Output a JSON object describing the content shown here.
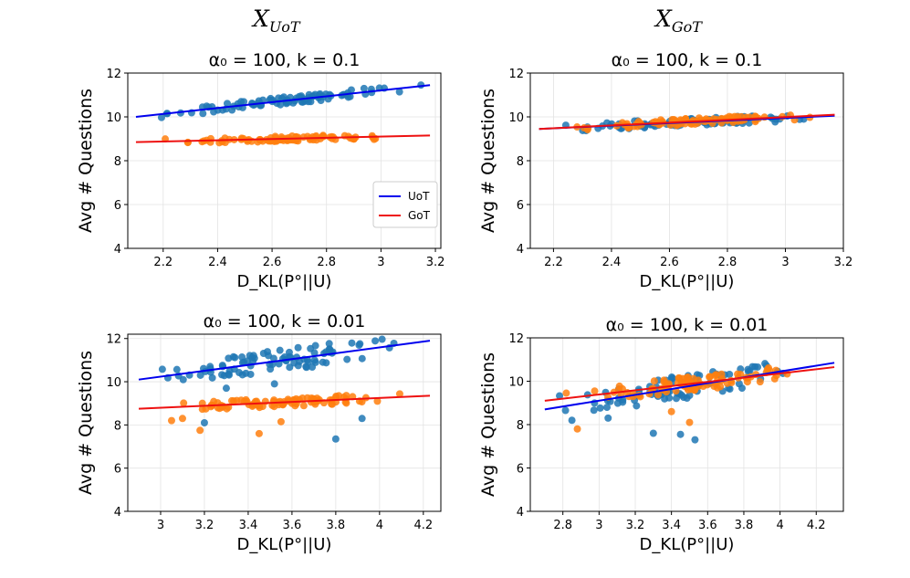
{
  "column_titles": [
    {
      "base": "X",
      "sub": "UoT"
    },
    {
      "base": "X",
      "sub": "GoT"
    }
  ],
  "colors": {
    "uot": "#1f77b4",
    "got": "#ff7f0e",
    "uot_line": "#0000ee",
    "got_line": "#ee1111"
  },
  "chart_data": [
    {
      "type": "scatter",
      "title": "α₀ = 100, k = 0.1",
      "xlabel": "D_KL(P°||U)",
      "ylabel": "Avg # Questions",
      "xlim": [
        2.07,
        3.22
      ],
      "ylim": [
        4,
        12
      ],
      "xticks": [
        2.2,
        2.4,
        2.6,
        2.8,
        3.0,
        3.2
      ],
      "yticks": [
        4,
        6,
        8,
        10,
        12
      ],
      "legend": {
        "position": "right",
        "entries": [
          "UoT",
          "GoT"
        ]
      },
      "series": [
        {
          "name": "UoT",
          "x_range": [
            2.1,
            3.18
          ],
          "y_center": [
            10.0,
            11.45
          ],
          "y_spread": 0.18,
          "count": 90,
          "fit": {
            "x": [
              2.1,
              3.18
            ],
            "y": [
              10.0,
              11.45
            ]
          }
        },
        {
          "name": "GoT",
          "x_range": [
            2.1,
            3.18
          ],
          "y_center": [
            8.85,
            9.15
          ],
          "y_spread": 0.12,
          "count": 90,
          "fit": {
            "x": [
              2.1,
              3.18
            ],
            "y": [
              8.85,
              9.15
            ]
          }
        }
      ]
    },
    {
      "type": "scatter",
      "title": "α₀ = 100, k = 0.1",
      "xlabel": "D_KL(P°||U)",
      "ylabel": "Avg # Questions",
      "xlim": [
        2.12,
        3.2
      ],
      "ylim": [
        4,
        12
      ],
      "xticks": [
        2.2,
        2.4,
        2.6,
        2.8,
        3.0,
        3.2
      ],
      "yticks": [
        4,
        6,
        8,
        10,
        12
      ],
      "series": [
        {
          "name": "UoT",
          "x_range": [
            2.15,
            3.17
          ],
          "y_center": [
            9.45,
            10.05
          ],
          "y_spread": 0.18,
          "count": 90,
          "fit": {
            "x": [
              2.15,
              3.17
            ],
            "y": [
              9.45,
              10.05
            ]
          }
        },
        {
          "name": "GoT",
          "x_range": [
            2.15,
            3.17
          ],
          "y_center": [
            9.45,
            10.1
          ],
          "y_spread": 0.15,
          "count": 90,
          "fit": {
            "x": [
              2.15,
              3.17
            ],
            "y": [
              9.45,
              10.1
            ]
          }
        }
      ]
    },
    {
      "type": "scatter",
      "title": "α₀ = 100, k = 0.01",
      "xlabel": "D_KL(P°||U)",
      "ylabel": "Avg # Questions",
      "xlim": [
        2.85,
        4.28
      ],
      "ylim": [
        4,
        12.2
      ],
      "xticks": [
        3.0,
        3.2,
        3.4,
        3.6,
        3.8,
        4.0,
        4.2
      ],
      "yticks": [
        4,
        6,
        8,
        10,
        12
      ],
      "series": [
        {
          "name": "UoT",
          "x_range": [
            2.9,
            4.23
          ],
          "y_center": [
            10.1,
            11.9
          ],
          "y_spread": 0.5,
          "count": 90,
          "fit": {
            "x": [
              2.9,
              4.23
            ],
            "y": [
              10.1,
              11.9
            ]
          },
          "outliers": [
            [
              3.2,
              8.1
            ],
            [
              3.8,
              7.35
            ],
            [
              3.92,
              8.3
            ],
            [
              3.3,
              9.7
            ],
            [
              3.52,
              9.9
            ]
          ]
        },
        {
          "name": "GoT",
          "x_range": [
            2.9,
            4.23
          ],
          "y_center": [
            8.75,
            9.35
          ],
          "y_spread": 0.2,
          "count": 90,
          "fit": {
            "x": [
              2.9,
              4.23
            ],
            "y": [
              8.75,
              9.35
            ]
          },
          "outliers": [
            [
              3.05,
              8.2
            ],
            [
              3.18,
              7.75
            ],
            [
              3.45,
              7.6
            ],
            [
              3.55,
              8.15
            ],
            [
              3.1,
              8.3
            ]
          ]
        }
      ]
    },
    {
      "type": "scatter",
      "title": "α₀ = 100, k = 0.01",
      "xlabel": "D_KL(P°||U)",
      "ylabel": "Avg # Questions",
      "xlim": [
        2.62,
        4.35
      ],
      "ylim": [
        4,
        12
      ],
      "xticks": [
        2.8,
        3.0,
        3.2,
        3.4,
        3.6,
        3.8,
        4.0,
        4.2
      ],
      "yticks": [
        4,
        6,
        8,
        10,
        12
      ],
      "series": [
        {
          "name": "UoT",
          "x_range": [
            2.7,
            4.3
          ],
          "y_center": [
            8.7,
            10.85
          ],
          "y_spread": 0.55,
          "count": 90,
          "fit": {
            "x": [
              2.7,
              4.3
            ],
            "y": [
              8.7,
              10.85
            ]
          },
          "outliers": [
            [
              3.3,
              7.6
            ],
            [
              3.45,
              7.55
            ],
            [
              3.53,
              7.3
            ],
            [
              2.85,
              8.2
            ],
            [
              3.05,
              8.3
            ]
          ]
        },
        {
          "name": "GoT",
          "x_range": [
            2.7,
            4.3
          ],
          "y_center": [
            9.1,
            10.65
          ],
          "y_spread": 0.35,
          "count": 90,
          "fit": {
            "x": [
              2.7,
              4.3
            ],
            "y": [
              9.1,
              10.65
            ]
          },
          "outliers": [
            [
              3.5,
              8.1
            ],
            [
              2.88,
              7.8
            ],
            [
              3.4,
              8.6
            ]
          ]
        }
      ]
    }
  ]
}
